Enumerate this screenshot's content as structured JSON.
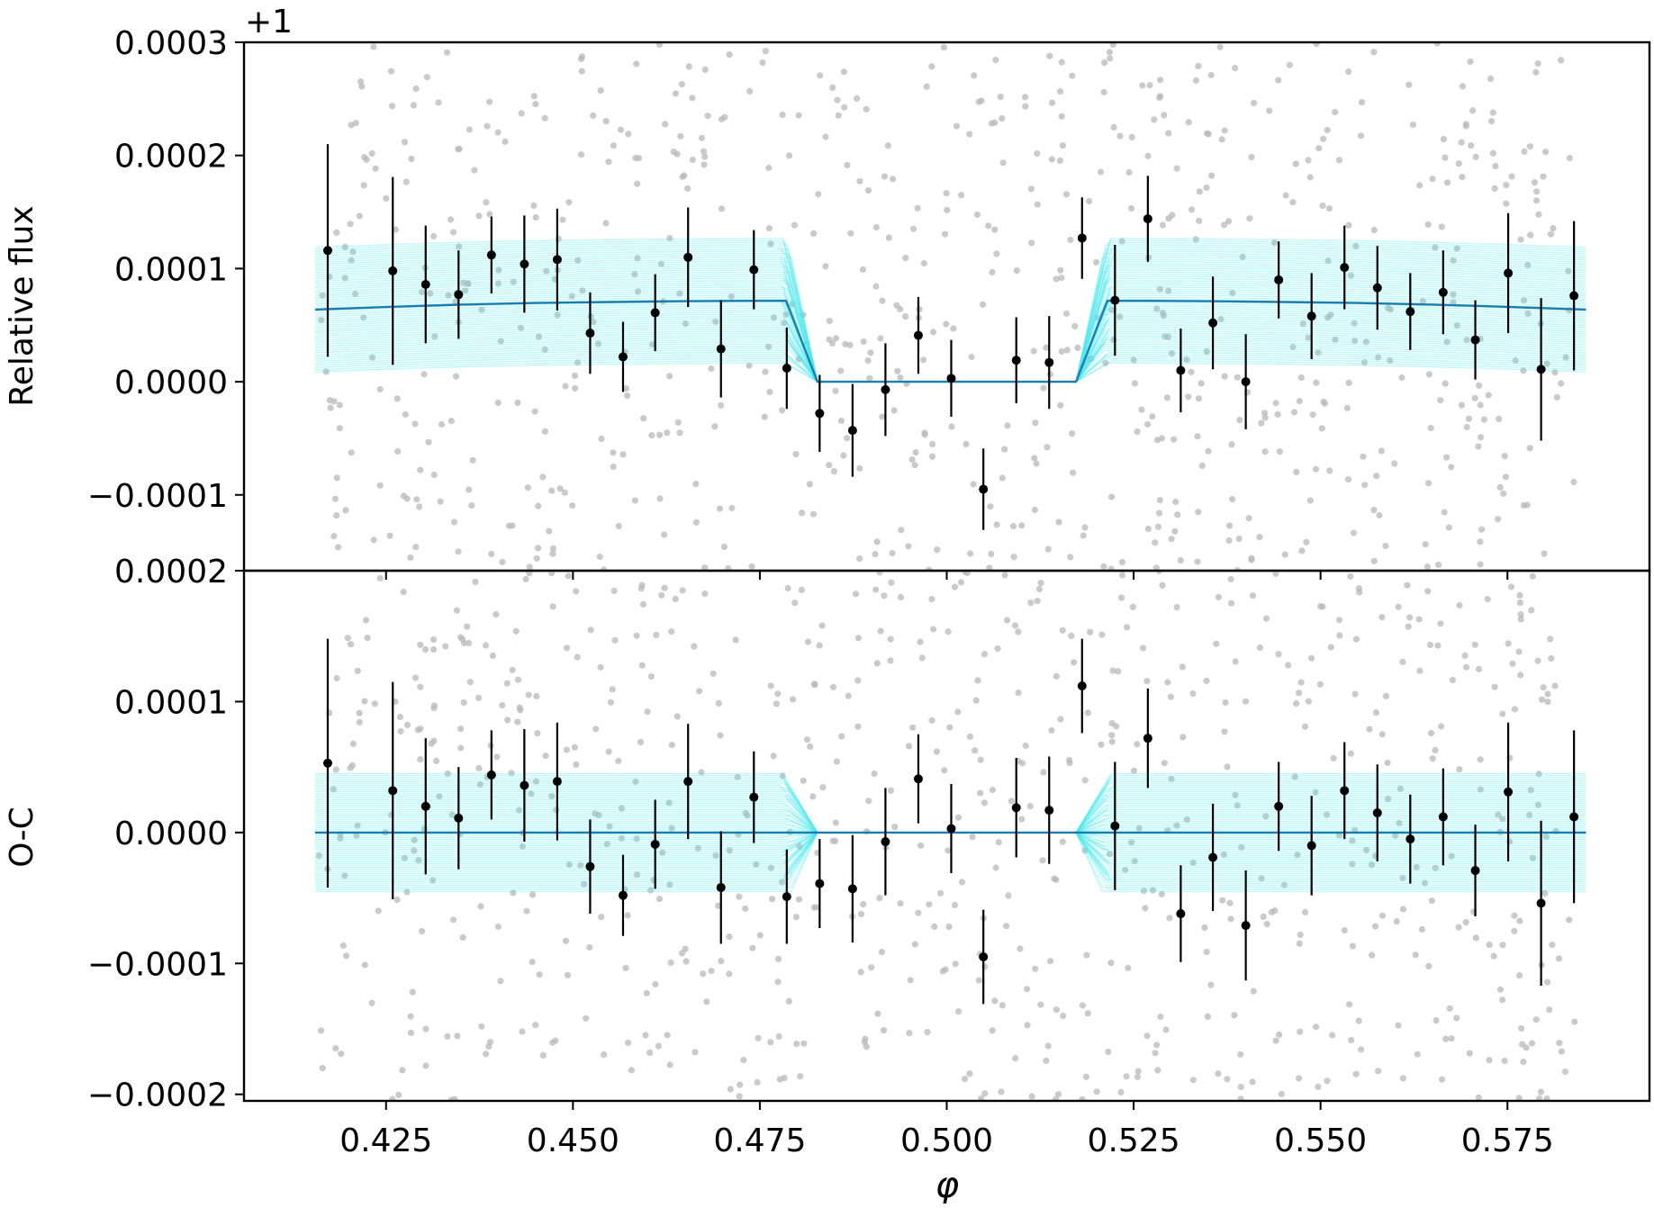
{
  "chart_data": [
    {
      "panel": "top",
      "type": "scatter",
      "ylabel": "Relative flux",
      "offset_label": "+1",
      "xlim": [
        0.406,
        0.594
      ],
      "ylim": [
        -0.000167,
        0.0003
      ],
      "yticks": [
        -0.0001,
        0.0,
        0.0001,
        0.0002,
        0.0003
      ],
      "ytick_labels": [
        "−0.0001",
        "0.0000",
        "0.0001",
        "0.0002",
        "0.0003"
      ],
      "xticks": [
        0.425,
        0.45,
        0.475,
        0.5,
        0.525,
        0.55,
        0.575
      ],
      "grid": false,
      "model": {
        "color": "#1a7fb0",
        "ensemble_color": "#4ee8ee",
        "baseline": 7.15e-05,
        "x": [
          0.4155,
          0.4255,
          0.435,
          0.445,
          0.455,
          0.465,
          0.4735,
          0.4785,
          0.4827,
          0.5,
          0.5173,
          0.5215,
          0.5265,
          0.535,
          0.545,
          0.555,
          0.565,
          0.575,
          0.5855
        ],
        "y": [
          6.38e-05,
          6.62e-05,
          6.82e-05,
          6.96e-05,
          7.05e-05,
          7.12e-05,
          7.15e-05,
          7.15e-05,
          0.0,
          0.0,
          0.0,
          7.15e-05,
          7.15e-05,
          7.12e-05,
          7.05e-05,
          6.96e-05,
          6.82e-05,
          6.62e-05,
          6.38e-05
        ]
      },
      "binned": {
        "color": "#000000",
        "x": [
          0.4172,
          0.4259,
          0.4303,
          0.4347,
          0.4391,
          0.4435,
          0.4479,
          0.4523,
          0.4567,
          0.461,
          0.4654,
          0.4698,
          0.4742,
          0.4786,
          0.483,
          0.4874,
          0.4918,
          0.4962,
          0.5006,
          0.5049,
          0.5093,
          0.5137,
          0.5181,
          0.5225,
          0.5269,
          0.5313,
          0.5356,
          0.54,
          0.5444,
          0.5488,
          0.5532,
          0.5576,
          0.562,
          0.5664,
          0.5707,
          0.5751,
          0.5795,
          0.5839
        ],
        "y": [
          0.000116,
          9.8e-05,
          8.6e-05,
          7.7e-05,
          0.000112,
          0.000104,
          0.000108,
          4.3e-05,
          2.2e-05,
          6.1e-05,
          0.00011,
          2.9e-05,
          9.9e-05,
          1.2e-05,
          -2.8e-05,
          -4.3e-05,
          -7e-06,
          4.1e-05,
          3e-06,
          -9.5e-05,
          1.9e-05,
          1.7e-05,
          0.000127,
          7.2e-05,
          0.000144,
          1e-05,
          5.2e-05,
          0.0,
          9e-05,
          5.8e-05,
          0.000101,
          8.3e-05,
          6.2e-05,
          7.9e-05,
          3.7e-05,
          9.6e-05,
          1.1e-05,
          7.6e-05
        ],
        "err": [
          9.4e-05,
          8.3e-05,
          5.2e-05,
          3.9e-05,
          3.4e-05,
          4.3e-05,
          4.5e-05,
          3.6e-05,
          3.1e-05,
          3.4e-05,
          4.4e-05,
          4.3e-05,
          3.5e-05,
          3.6e-05,
          3.4e-05,
          4.1e-05,
          4.1e-05,
          3.4e-05,
          3.4e-05,
          3.6e-05,
          3.8e-05,
          4.1e-05,
          3.6e-05,
          4.9e-05,
          3.8e-05,
          3.7e-05,
          4.1e-05,
          4.2e-05,
          3.4e-05,
          3.8e-05,
          3.7e-05,
          3.7e-05,
          3.4e-05,
          3.7e-05,
          3.5e-05,
          5.3e-05,
          6.3e-05,
          6.6e-05
        ]
      }
    },
    {
      "panel": "bottom",
      "type": "scatter",
      "ylabel": "O-C",
      "xlabel": "φ",
      "xlim": [
        0.406,
        0.594
      ],
      "ylim": [
        -0.000205,
        0.0002
      ],
      "yticks": [
        -0.0002,
        -0.0001,
        0.0,
        0.0001,
        0.0002
      ],
      "ytick_labels": [
        "−0.0002",
        "−0.0001",
        "0.0000",
        "0.0001",
        "0.0002"
      ],
      "xticks": [
        0.425,
        0.45,
        0.475,
        0.5,
        0.525,
        0.55,
        0.575
      ],
      "xtick_labels": [
        "0.425",
        "0.450",
        "0.475",
        "0.500",
        "0.525",
        "0.550",
        "0.575"
      ],
      "grid": false,
      "model": {
        "color": "#1a7fb0",
        "ensemble_color": "#4ee8ee",
        "x": [
          0.4155,
          0.5855
        ],
        "y": [
          0.0,
          0.0
        ]
      },
      "binned": {
        "color": "#000000",
        "x": [
          0.4172,
          0.4259,
          0.4303,
          0.4347,
          0.4391,
          0.4435,
          0.4479,
          0.4523,
          0.4567,
          0.461,
          0.4654,
          0.4698,
          0.4742,
          0.4786,
          0.483,
          0.4874,
          0.4918,
          0.4962,
          0.5006,
          0.5049,
          0.5093,
          0.5137,
          0.5181,
          0.5225,
          0.5269,
          0.5313,
          0.5356,
          0.54,
          0.5444,
          0.5488,
          0.5532,
          0.5576,
          0.562,
          0.5664,
          0.5707,
          0.5751,
          0.5795,
          0.5839
        ],
        "y": [
          5.3e-05,
          3.2e-05,
          2e-05,
          1.1e-05,
          4.4e-05,
          3.6e-05,
          3.9e-05,
          -2.6e-05,
          -4.8e-05,
          -9e-06,
          3.9e-05,
          -4.2e-05,
          2.7e-05,
          -4.9e-05,
          -3.9e-05,
          -4.3e-05,
          -7e-06,
          4.1e-05,
          3e-06,
          -9.5e-05,
          1.9e-05,
          1.7e-05,
          0.000112,
          5e-06,
          7.2e-05,
          -6.2e-05,
          -1.9e-05,
          -7.1e-05,
          2e-05,
          -1e-05,
          3.2e-05,
          1.5e-05,
          -5e-06,
          1.2e-05,
          -2.9e-05,
          3.1e-05,
          -5.4e-05,
          1.2e-05
        ],
        "err": [
          9.5e-05,
          8.3e-05,
          5.2e-05,
          3.9e-05,
          3.4e-05,
          4.3e-05,
          4.5e-05,
          3.6e-05,
          3.1e-05,
          3.4e-05,
          4.4e-05,
          4.3e-05,
          3.5e-05,
          3.6e-05,
          3.4e-05,
          4.1e-05,
          4.1e-05,
          3.4e-05,
          3.4e-05,
          3.6e-05,
          3.8e-05,
          4.1e-05,
          3.6e-05,
          4.9e-05,
          3.8e-05,
          3.7e-05,
          4.1e-05,
          4.2e-05,
          3.4e-05,
          3.8e-05,
          3.7e-05,
          3.7e-05,
          3.4e-05,
          3.7e-05,
          3.5e-05,
          5.3e-05,
          6.3e-05,
          6.6e-05
        ]
      }
    }
  ],
  "colors": {
    "raw_points": "#b8b8b8",
    "model_line": "#1a7fb0",
    "model_ensemble": "#4ee8ee",
    "binned_points": "#000000"
  }
}
